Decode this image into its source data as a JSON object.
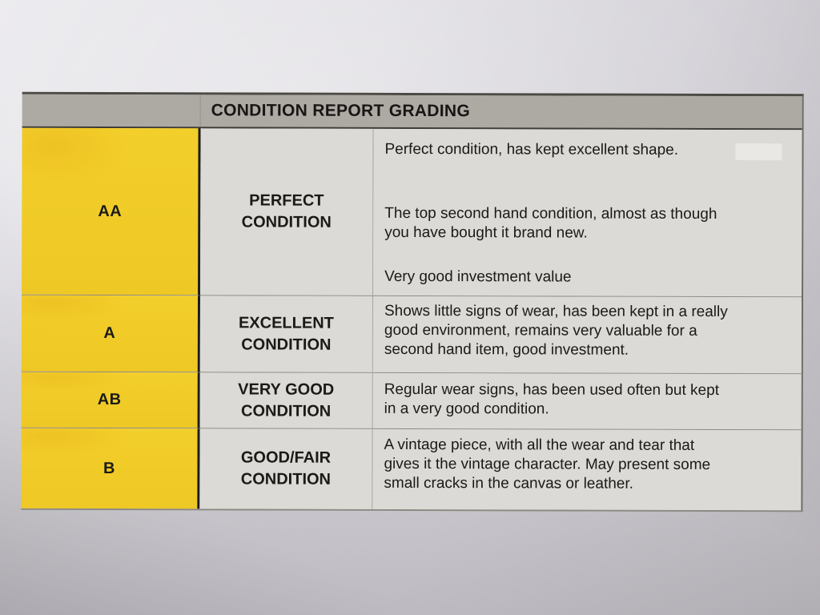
{
  "table": {
    "title": "CONDITION REPORT GRADING",
    "rows": [
      {
        "grade": "AA",
        "condition": "PERFECT\nCONDITION",
        "paragraphs": [
          "Perfect condition, has kept excellent shape.",
          "The top second hand condition, almost as though\nyou have bought it brand new.",
          "Very good investment value"
        ]
      },
      {
        "grade": "A",
        "condition": "EXCELLENT\nCONDITION",
        "paragraphs": [
          "Shows little signs of wear, has been kept in a really\ngood environment, remains very valuable for a\nsecond hand item, good investment."
        ]
      },
      {
        "grade": "AB",
        "condition": "VERY GOOD\nCONDITION",
        "paragraphs": [
          "Regular wear signs, has been used often but kept\nin a very good condition."
        ]
      },
      {
        "grade": "B",
        "condition": "GOOD/FAIR\nCONDITION",
        "paragraphs": [
          "A vintage piece, with all the wear and tear that\ngives it the vintage character. May present some\nsmall cracks in the canvas or leather."
        ]
      }
    ],
    "colors": {
      "grade_column_yellow": "#f1cd28",
      "header_gray": "#ada9a3",
      "cell_gray": "#dcdad6",
      "text": "#1b1a18"
    }
  }
}
